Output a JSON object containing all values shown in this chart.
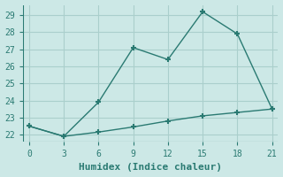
{
  "line1_x": [
    0,
    3,
    6,
    9,
    12,
    15,
    18,
    21
  ],
  "line1_y": [
    22.5,
    21.9,
    23.9,
    27.1,
    26.4,
    29.2,
    27.9,
    23.5
  ],
  "line2_x": [
    0,
    3,
    6,
    9,
    12,
    15,
    18,
    21
  ],
  "line2_y": [
    22.5,
    21.9,
    22.15,
    22.45,
    22.8,
    23.1,
    23.3,
    23.5
  ],
  "line_color": "#2a7a72",
  "bg_color": "#cce8e6",
  "grid_color": "#aacfcc",
  "xlabel": "Humidex (Indice chaleur)",
  "xlim": [
    -0.5,
    21.5
  ],
  "ylim": [
    21.6,
    29.6
  ],
  "xticks": [
    0,
    3,
    6,
    9,
    12,
    15,
    18,
    21
  ],
  "yticks": [
    22,
    23,
    24,
    25,
    26,
    27,
    28,
    29
  ],
  "marker": "+",
  "markersize": 5,
  "markeredgewidth": 1.5,
  "linewidth": 1.0,
  "xlabel_fontsize": 8,
  "tick_fontsize": 7
}
